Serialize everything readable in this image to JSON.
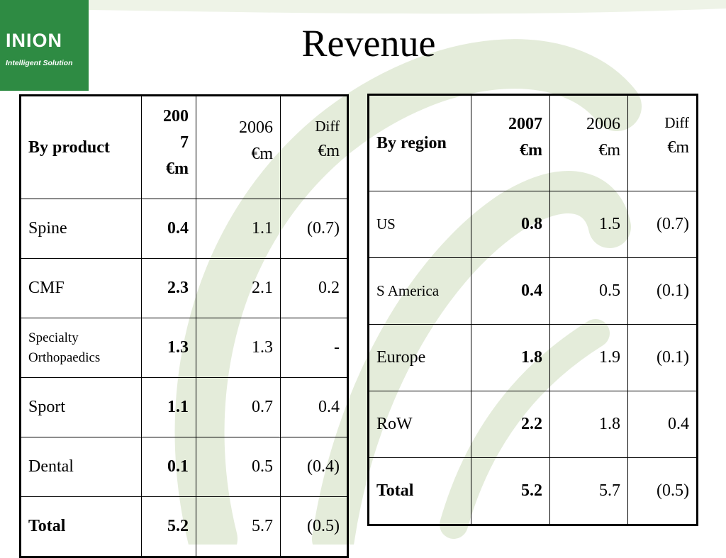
{
  "slide": {
    "title": "Revenue"
  },
  "logo": {
    "name": "INION",
    "tagline": "Intelligent Solution"
  },
  "by_product": {
    "header": {
      "label": "By product",
      "col_2007_year": "2007",
      "col_2006_year": "2006",
      "col_diff": "Diff",
      "unit": "€m"
    },
    "rows": [
      {
        "label": "Spine",
        "v2007": "0.4",
        "v2006": "1.1",
        "diff": "(0.7)"
      },
      {
        "label": "CMF",
        "v2007": "2.3",
        "v2006": "2.1",
        "diff": "0.2"
      },
      {
        "label": "Specialty Orthopaedics",
        "v2007": "1.3",
        "v2006": "1.3",
        "diff": "-"
      },
      {
        "label": "Sport",
        "v2007": "1.1",
        "v2006": "0.7",
        "diff": "0.4"
      },
      {
        "label": "Dental",
        "v2007": "0.1",
        "v2006": "0.5",
        "diff": "(0.4)"
      },
      {
        "label": "Total",
        "v2007": "5.2",
        "v2006": "5.7",
        "diff": "(0.5)"
      }
    ]
  },
  "by_region": {
    "header": {
      "label": "By region",
      "col_2007_year": "2007",
      "col_2006_year": "2006",
      "col_diff": "Diff",
      "unit": "€m"
    },
    "rows": [
      {
        "label": "US",
        "v2007": "0.8",
        "v2006": "1.5",
        "diff": "(0.7)"
      },
      {
        "label": "S America",
        "v2007": "0.4",
        "v2006": "0.5",
        "diff": "(0.1)"
      },
      {
        "label": "Europe",
        "v2007": "1.8",
        "v2006": "1.9",
        "diff": "(0.1)"
      },
      {
        "label": "RoW",
        "v2007": "2.2",
        "v2006": "1.8",
        "diff": "0.4"
      },
      {
        "label": "Total",
        "v2007": "5.2",
        "v2006": "5.7",
        "diff": "(0.5)"
      }
    ]
  },
  "colors": {
    "brand_green": "#2e8b43",
    "watermark_green": "#e3ecd9"
  }
}
